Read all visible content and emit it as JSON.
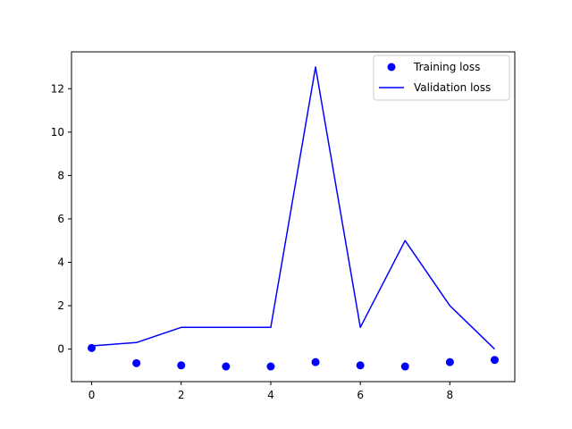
{
  "chart_data": {
    "type": "line",
    "title": "",
    "xlabel": "",
    "ylabel": "",
    "xlim": [
      -0.45,
      9.45
    ],
    "ylim": [
      -1.5,
      13.7
    ],
    "x_ticks": [
      0,
      2,
      4,
      6,
      8
    ],
    "y_ticks": [
      0,
      2,
      4,
      6,
      8,
      10,
      12
    ],
    "grid": false,
    "legend_position": "top-right",
    "series": [
      {
        "name": "Training loss",
        "style": "markers",
        "color": "#0000ff",
        "x": [
          0,
          1,
          2,
          3,
          4,
          5,
          6,
          7,
          8,
          9
        ],
        "values": [
          0.05,
          -0.65,
          -0.75,
          -0.8,
          -0.8,
          -0.6,
          -0.75,
          -0.8,
          -0.6,
          -0.5
        ]
      },
      {
        "name": "Validation loss",
        "style": "line",
        "color": "#0000ff",
        "x": [
          0,
          1,
          2,
          3,
          4,
          5,
          6,
          7,
          8,
          9
        ],
        "values": [
          0.15,
          0.3,
          1.0,
          1.0,
          1.0,
          13.0,
          1.0,
          5.0,
          2.0,
          0.0
        ]
      }
    ]
  }
}
